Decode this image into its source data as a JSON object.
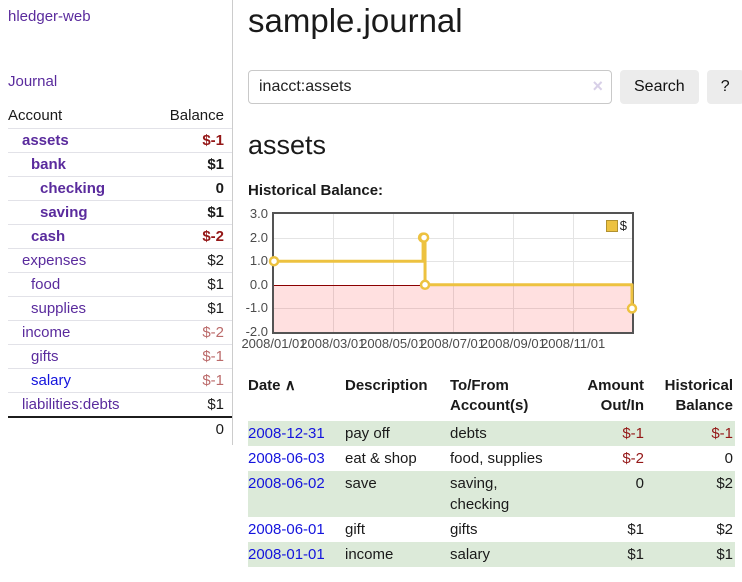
{
  "colors": {
    "text": "#1a1a1a",
    "link_purple": "#5a2b9d",
    "link_blue": "#1414dd",
    "negative_strong": "#941717",
    "negative_soft": "#bb6a6a",
    "stripe_green": "#dcead9",
    "chart_line": "#edc240",
    "chart_negative_fill": "rgba(255,0,0,0.12)",
    "zero_line": "#8b0000",
    "chart_border": "#545454",
    "gridline": "#e4e4e4",
    "tick_label": "#4b4b4b",
    "button_bg": "#ececec",
    "clear_icon": "#d8d0e8",
    "row_border": "#e2e2e8",
    "total_border": "#1c1c1c",
    "sidebar_border": "#cccccc"
  },
  "sidebar": {
    "app_title": "hledger-web",
    "journal_label": "Journal",
    "accounts_header": {
      "account": "Account",
      "balance": "Balance"
    },
    "accounts": [
      {
        "name": "assets",
        "balance": "$-1"
      },
      {
        "name": "bank",
        "balance": "$1"
      },
      {
        "name": "checking",
        "balance": "0"
      },
      {
        "name": "saving",
        "balance": "$1"
      },
      {
        "name": "cash",
        "balance": "$-2"
      },
      {
        "name": "expenses",
        "balance": "$2"
      },
      {
        "name": "food",
        "balance": "$1"
      },
      {
        "name": "supplies",
        "balance": "$1"
      },
      {
        "name": "income",
        "balance": "$-2"
      },
      {
        "name": "gifts",
        "balance": "$-1"
      },
      {
        "name": "salary",
        "balance": "$-1"
      },
      {
        "name": "liabilities:debts",
        "balance": "$1"
      }
    ],
    "total_balance": "0"
  },
  "main": {
    "title": "sample.journal",
    "search": {
      "value": "inacct:assets",
      "clear_icon": "×",
      "button_label": "Search",
      "help_label": "?"
    },
    "account_heading": "assets"
  },
  "chart_data": {
    "type": "line",
    "title": "Historical Balance:",
    "steps": true,
    "x_range_days": 365,
    "ylim": [
      -2,
      3
    ],
    "grid": true,
    "series": [
      {
        "name": "$",
        "color": "#edc240",
        "points": [
          {
            "date": "2008-01-01",
            "day": 0,
            "value": 1
          },
          {
            "date": "2008-06-01",
            "day": 152,
            "value": 2
          },
          {
            "date": "2008-06-02",
            "day": 153,
            "value": 2
          },
          {
            "date": "2008-06-03",
            "day": 154,
            "value": 0
          },
          {
            "date": "2008-12-31",
            "day": 365,
            "value": -1
          }
        ]
      }
    ],
    "y_ticks": [
      {
        "value": 3,
        "label": "3.0"
      },
      {
        "value": 2,
        "label": "2.0"
      },
      {
        "value": 1,
        "label": "1.0"
      },
      {
        "value": 0,
        "label": "0.0"
      },
      {
        "value": -1,
        "label": "-1.0"
      },
      {
        "value": -2,
        "label": "-2.0"
      }
    ],
    "x_ticks": [
      {
        "day": 0,
        "label": "2008/01/01"
      },
      {
        "day": 60,
        "label": "2008/03/01"
      },
      {
        "day": 121,
        "label": "2008/05/01"
      },
      {
        "day": 182,
        "label": "2008/07/01"
      },
      {
        "day": 244,
        "label": "2008/09/01"
      },
      {
        "day": 305,
        "label": "2008/11/01"
      }
    ],
    "legend": {
      "label": "$",
      "position": "top-right"
    }
  },
  "transactions": {
    "headers": {
      "date": "Date",
      "sort_icon": "∧",
      "description": "Description",
      "accounts_line1": "To/From",
      "accounts_line2": "Account(s)",
      "amount_line1": "Amount",
      "amount_line2": "Out/In",
      "balance_line1": "Historical",
      "balance_line2": "Balance"
    },
    "rows": [
      {
        "date": "2008-12-31",
        "description": "pay off",
        "accounts": "debts",
        "amount": "$-1",
        "balance": "$-1"
      },
      {
        "date": "2008-06-03",
        "description": "eat & shop",
        "accounts": "food, supplies",
        "amount": "$-2",
        "balance": "0"
      },
      {
        "date": "2008-06-02",
        "description": "save",
        "accounts": "saving, checking",
        "amount": "0",
        "balance": "$2"
      },
      {
        "date": "2008-06-01",
        "description": "gift",
        "accounts": "gifts",
        "amount": "$1",
        "balance": "$2"
      },
      {
        "date": "2008-01-01",
        "description": "income",
        "accounts": "salary",
        "amount": "$1",
        "balance": "$1"
      }
    ]
  }
}
